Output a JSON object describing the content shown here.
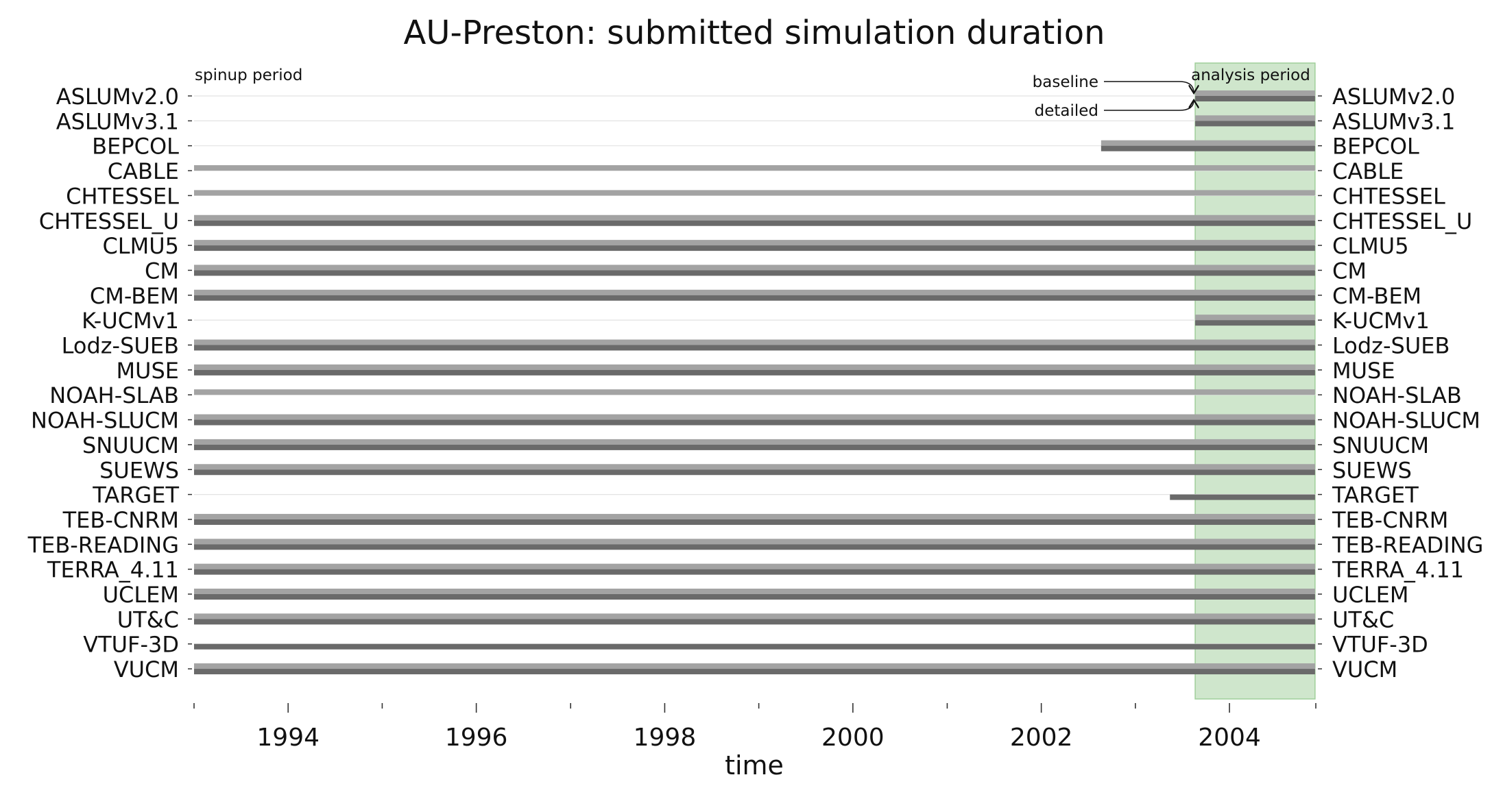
{
  "chart_data": {
    "type": "bar",
    "title": "AU-Preston: submitted simulation duration",
    "xlabel": "time",
    "ylabel": "",
    "xlim": [
      "1993-01-01",
      "2004-12-01"
    ],
    "xticks": [
      "1994",
      "1996",
      "1998",
      "2000",
      "2002",
      "2004"
    ],
    "spinup_label": "spinup period",
    "analysis_period": {
      "label": "analysis period",
      "start": "2003-08-21",
      "end": "2004-11-28",
      "color": "#cfe6cc"
    },
    "annotations": {
      "baseline": "baseline",
      "detailed": "detailed"
    },
    "series": [
      {
        "name": "baseline",
        "color": "#a3a3a3"
      },
      {
        "name": "detailed",
        "color": "#6a6a6a"
      }
    ],
    "models": [
      {
        "name": "ASLUMv2.0",
        "baseline": [
          "2003-08-21",
          "2004-11-28"
        ],
        "detailed": [
          "2003-08-21",
          "2004-11-28"
        ]
      },
      {
        "name": "ASLUMv3.1",
        "baseline": [
          "2003-08-21",
          "2004-11-28"
        ],
        "detailed": [
          "2003-08-21",
          "2004-11-28"
        ]
      },
      {
        "name": "BEPCOL",
        "baseline": [
          "2002-08-21",
          "2004-11-28"
        ],
        "detailed": [
          "2002-08-21",
          "2004-11-28"
        ]
      },
      {
        "name": "CABLE",
        "baseline": [
          "1993-01-01",
          "2004-11-28"
        ],
        "detailed": null
      },
      {
        "name": "CHTESSEL",
        "baseline": [
          "1993-01-01",
          "2004-11-28"
        ],
        "detailed": null
      },
      {
        "name": "CHTESSEL_U",
        "baseline": [
          "1993-01-01",
          "2004-11-28"
        ],
        "detailed": [
          "1993-01-01",
          "2004-11-28"
        ]
      },
      {
        "name": "CLMU5",
        "baseline": [
          "1993-01-01",
          "2004-11-28"
        ],
        "detailed": [
          "1993-01-01",
          "2004-11-28"
        ]
      },
      {
        "name": "CM",
        "baseline": [
          "1993-01-01",
          "2004-11-28"
        ],
        "detailed": [
          "1993-01-01",
          "2004-11-28"
        ]
      },
      {
        "name": "CM-BEM",
        "baseline": [
          "1993-01-01",
          "2004-11-28"
        ],
        "detailed": [
          "1993-01-01",
          "2004-11-28"
        ]
      },
      {
        "name": "K-UCMv1",
        "baseline": [
          "2003-08-21",
          "2004-11-28"
        ],
        "detailed": [
          "2003-08-21",
          "2004-11-28"
        ]
      },
      {
        "name": "Lodz-SUEB",
        "baseline": [
          "1993-01-01",
          "2004-11-28"
        ],
        "detailed": [
          "1993-01-01",
          "2004-11-28"
        ]
      },
      {
        "name": "MUSE",
        "baseline": [
          "1993-01-01",
          "2004-11-28"
        ],
        "detailed": [
          "1993-01-01",
          "2004-11-28"
        ]
      },
      {
        "name": "NOAH-SLAB",
        "baseline": [
          "1993-01-01",
          "2004-11-28"
        ],
        "detailed": null
      },
      {
        "name": "NOAH-SLUCM",
        "baseline": [
          "1993-01-01",
          "2004-11-28"
        ],
        "detailed": [
          "1993-01-01",
          "2004-11-28"
        ]
      },
      {
        "name": "SNUUCM",
        "baseline": [
          "1993-01-01",
          "2004-11-28"
        ],
        "detailed": [
          "1993-01-01",
          "2004-11-28"
        ]
      },
      {
        "name": "SUEWS",
        "baseline": [
          "1993-01-01",
          "2004-11-28"
        ],
        "detailed": [
          "1993-01-01",
          "2004-11-28"
        ]
      },
      {
        "name": "TARGET",
        "baseline": null,
        "detailed": [
          "2003-05-15",
          "2004-11-28"
        ]
      },
      {
        "name": "TEB-CNRM",
        "baseline": [
          "1993-01-01",
          "2004-11-28"
        ],
        "detailed": [
          "1993-01-01",
          "2004-11-28"
        ]
      },
      {
        "name": "TEB-READING",
        "baseline": [
          "1993-01-01",
          "2004-11-28"
        ],
        "detailed": [
          "1993-01-01",
          "2004-11-28"
        ]
      },
      {
        "name": "TERRA_4.11",
        "baseline": [
          "1993-01-01",
          "2004-11-28"
        ],
        "detailed": [
          "1993-01-01",
          "2004-11-28"
        ]
      },
      {
        "name": "UCLEM",
        "baseline": [
          "1993-01-01",
          "2004-11-28"
        ],
        "detailed": [
          "1993-01-01",
          "2004-11-28"
        ]
      },
      {
        "name": "UT&C",
        "baseline": [
          "1993-01-01",
          "2004-11-28"
        ],
        "detailed": [
          "1993-01-01",
          "2004-11-28"
        ]
      },
      {
        "name": "VTUF-3D",
        "baseline": null,
        "detailed": [
          "1993-01-01",
          "2004-11-28"
        ]
      },
      {
        "name": "VUCM",
        "baseline": [
          "1993-01-01",
          "2004-11-28"
        ],
        "detailed": [
          "1993-01-01",
          "2004-11-28"
        ]
      }
    ],
    "grid": true,
    "legend": "none"
  }
}
